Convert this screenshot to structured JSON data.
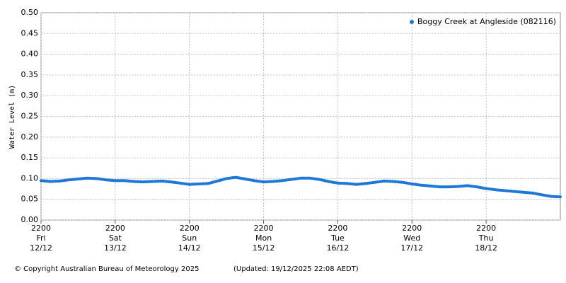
{
  "chart_data": {
    "type": "line",
    "y_label": "Water Level (m)",
    "copyright": "© Copyright Australian Bureau of Meteorology 2025",
    "updated": "(Updated: 19/12/2025 22:08 AEDT)",
    "legend": "top-right",
    "grid": true,
    "ylim": [
      0,
      0.5
    ],
    "yticks": [
      {
        "value": 0,
        "label": "0.00"
      },
      0.05,
      {
        "value": 0.1,
        "label": "0.10"
      },
      0.15,
      {
        "value": 0.2,
        "label": "0.20"
      },
      0.25,
      {
        "value": 0.3,
        "label": "0.30"
      },
      0.35,
      {
        "value": 0.4,
        "label": "0.40"
      },
      0.45,
      {
        "value": 0.5,
        "label": "0.50"
      }
    ],
    "xlim": [
      "12/12 22:00",
      "19/12 22:00"
    ],
    "xticks": [
      {
        "value": "12/12 22:00",
        "label": [
          "2200",
          "Fri",
          "12/12"
        ]
      },
      {
        "value": "13/12 22:00",
        "label": [
          "2200",
          "Sat",
          "13/12"
        ]
      },
      {
        "value": "14/12 22:00",
        "label": [
          "2200",
          "Sun",
          "14/12"
        ]
      },
      {
        "value": "15/12 22:00",
        "label": [
          "2200",
          "Mon",
          "15/12"
        ]
      },
      {
        "value": "16/12 22:00",
        "label": [
          "2200",
          "Tue",
          "16/12"
        ]
      },
      {
        "value": "17/12 22:00",
        "label": [
          "2200",
          "Wed",
          "17/12"
        ]
      },
      {
        "value": "18/12 22:00",
        "label": [
          "2200",
          "Thu",
          "18/12"
        ]
      }
    ],
    "x": [
      "12/12 22:00",
      "13/12 01:00",
      "13/12 04:00",
      "13/12 07:00",
      "13/12 10:00",
      "13/12 13:00",
      "13/12 16:00",
      "13/12 19:00",
      "13/12 22:00",
      "14/12 01:00",
      "14/12 04:00",
      "14/12 07:00",
      "14/12 10:00",
      "14/12 13:00",
      "14/12 16:00",
      "14/12 19:00",
      "14/12 22:00",
      "15/12 01:00",
      "15/12 04:00",
      "15/12 07:00",
      "15/12 10:00",
      "15/12 13:00",
      "15/12 16:00",
      "15/12 19:00",
      "15/12 22:00",
      "16/12 01:00",
      "16/12 04:00",
      "16/12 07:00",
      "16/12 10:00",
      "16/12 13:00",
      "16/12 16:00",
      "16/12 19:00",
      "16/12 22:00",
      "17/12 01:00",
      "17/12 04:00",
      "17/12 07:00",
      "17/12 10:00",
      "17/12 13:00",
      "17/12 16:00",
      "17/12 19:00",
      "17/12 22:00",
      "18/12 01:00",
      "18/12 04:00",
      "18/12 07:00",
      "18/12 10:00",
      "18/12 13:00",
      "18/12 16:00",
      "18/12 19:00",
      "18/12 22:00",
      "19/12 01:00",
      "19/12 04:00",
      "19/12 07:00",
      "19/12 10:00",
      "19/12 13:00",
      "19/12 16:00",
      "19/12 19:00",
      "19/12 22:00"
    ],
    "series": [
      {
        "name": "Boggy Creek at Angleside (082116)",
        "color": "#1e78d7",
        "values": [
          0.095,
          0.093,
          0.094,
          0.097,
          0.099,
          0.101,
          0.1,
          0.097,
          0.095,
          0.095,
          0.093,
          0.092,
          0.093,
          0.094,
          0.092,
          0.089,
          0.086,
          0.087,
          0.088,
          0.094,
          0.1,
          0.103,
          0.099,
          0.095,
          0.092,
          0.093,
          0.095,
          0.098,
          0.101,
          0.101,
          0.098,
          0.093,
          0.089,
          0.088,
          0.086,
          0.088,
          0.091,
          0.094,
          0.093,
          0.091,
          0.087,
          0.084,
          0.082,
          0.08,
          0.08,
          0.081,
          0.083,
          0.08,
          0.076,
          0.073,
          0.071,
          0.069,
          0.067,
          0.065,
          0.061,
          0.057,
          0.056
        ]
      }
    ]
  }
}
